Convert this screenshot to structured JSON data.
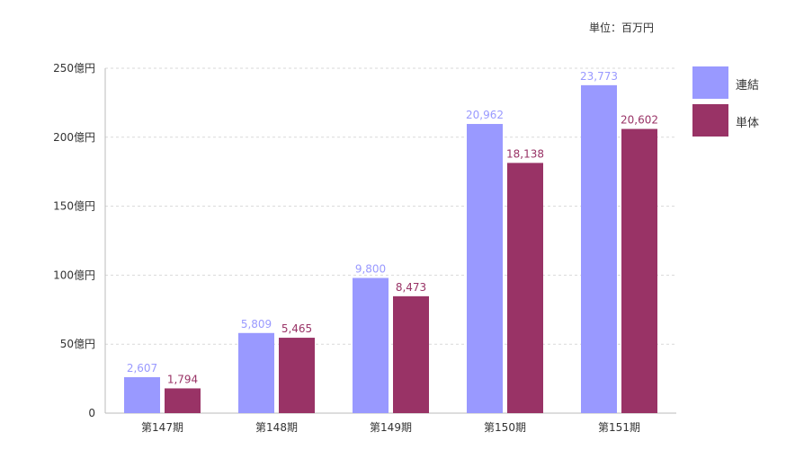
{
  "unit_label": "単位：百万円",
  "colors": {
    "consolidated": "#9999ff",
    "standalone": "#993366",
    "grid": "#d9d9d9",
    "axis": "#bbbbbb"
  },
  "chart_data": {
    "type": "bar",
    "title": "",
    "xlabel": "",
    "ylabel": "",
    "unit": "単位：百万円",
    "categories": [
      "第147期",
      "第148期",
      "第149期",
      "第150期",
      "第151期"
    ],
    "ylim": [
      0,
      25000
    ],
    "yticks": [
      {
        "value": 0,
        "label": "0"
      },
      {
        "value": 5000,
        "label": "50億円"
      },
      {
        "value": 10000,
        "label": "100億円"
      },
      {
        "value": 15000,
        "label": "150億円"
      },
      {
        "value": 20000,
        "label": "200億円"
      },
      {
        "value": 25000,
        "label": "250億円"
      }
    ],
    "grid": true,
    "legend_position": "right",
    "series": [
      {
        "name": "連結",
        "color": "#9999ff",
        "values": [
          2607,
          5809,
          9800,
          20962,
          23773
        ],
        "labels": [
          "2,607",
          "5,809",
          "9,800",
          "20,962",
          "23,773"
        ]
      },
      {
        "name": "単体",
        "color": "#993366",
        "values": [
          1794,
          5465,
          8473,
          18138,
          20602
        ],
        "labels": [
          "1,794",
          "5,465",
          "8,473",
          "18,138",
          "20,602"
        ]
      }
    ]
  }
}
